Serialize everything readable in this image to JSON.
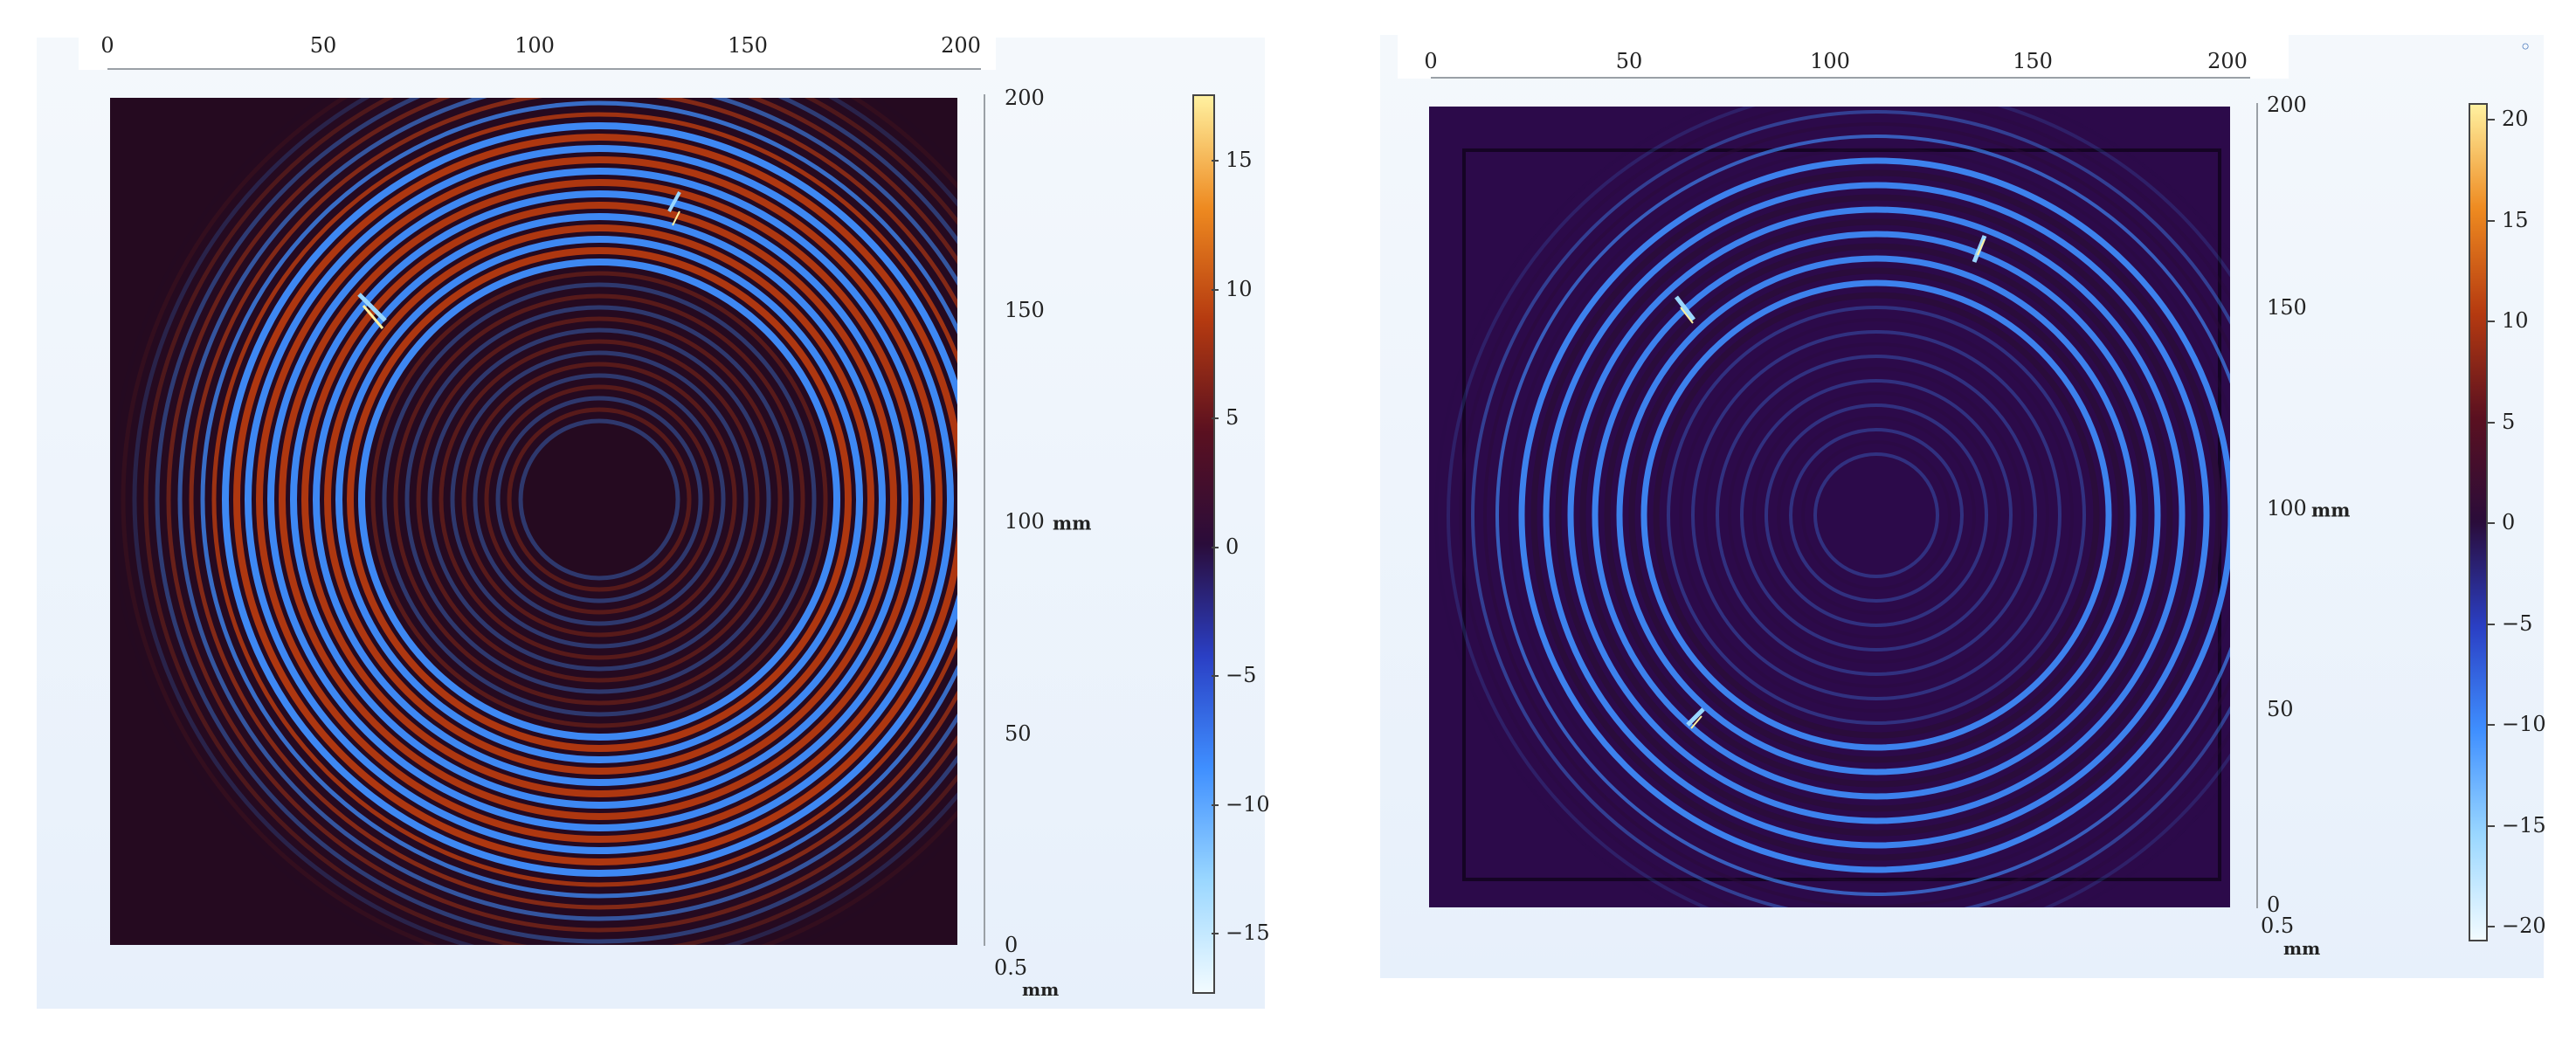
{
  "colorscale": [
    "#f2fbff",
    "#9ad7ff",
    "#3f8fff",
    "#2a3fc4",
    "#2a0c3a",
    "#5a1020",
    "#b53a10",
    "#ee8a20",
    "#fff1a0"
  ],
  "left": {
    "top_axis": [
      "0",
      "50",
      "100",
      "150",
      "200"
    ],
    "right_axis": [
      "200",
      "150",
      "100",
      "50",
      "0"
    ],
    "right_axis_unit": "mm",
    "scale_bar": "0.5",
    "scale_unit": "mm",
    "colorbar_ticks": [
      "15",
      "10",
      "5",
      "0",
      "−5",
      "−10",
      "−15"
    ]
  },
  "right": {
    "top_axis": [
      "0",
      "50",
      "100",
      "150",
      "200"
    ],
    "right_axis": [
      "200",
      "150",
      "100",
      "50",
      "0"
    ],
    "right_axis_unit": "mm",
    "scale_bar": "0.5",
    "scale_unit": "mm",
    "colorbar_ticks": [
      "20",
      "15",
      "10",
      "5",
      "0",
      "−5",
      "−10",
      "−15",
      "−20"
    ]
  }
}
